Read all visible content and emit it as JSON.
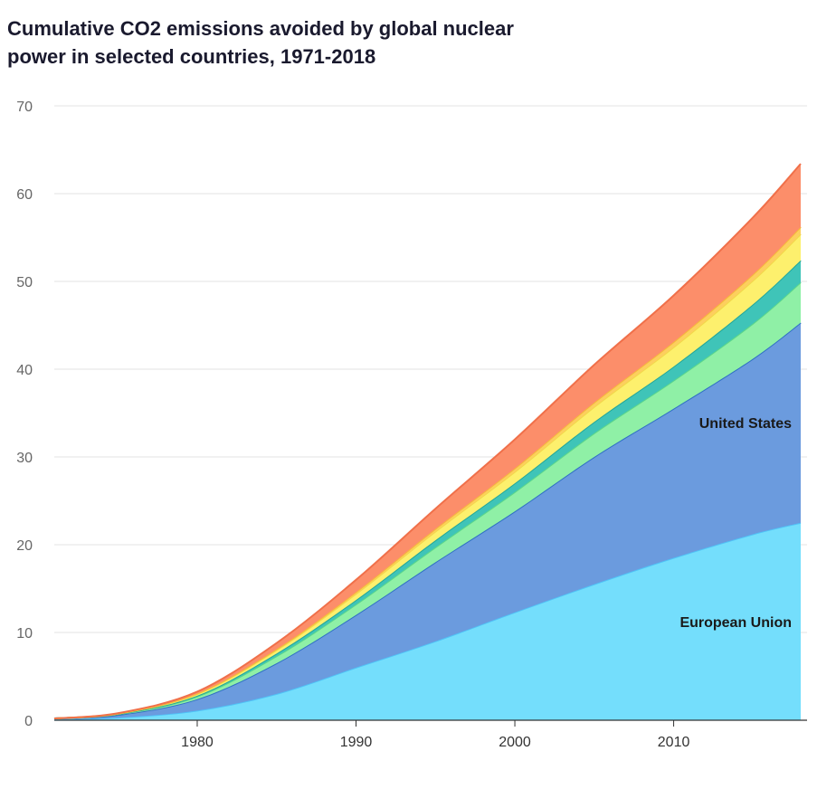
{
  "chart_data": {
    "type": "area",
    "stacked": true,
    "title": "Cumulative CO2 emissions avoided by global nuclear power in selected countries, 1971-2018",
    "xlabel": "",
    "ylabel": "",
    "xlim": [
      1971,
      2018
    ],
    "ylim": [
      0,
      70
    ],
    "yticks": [
      "0",
      "10",
      "20",
      "30",
      "40",
      "50",
      "60",
      "70"
    ],
    "xticks": [
      "1980",
      "1990",
      "2000",
      "2010"
    ],
    "grid": true,
    "x": [
      1971,
      1975,
      1980,
      1985,
      1990,
      1995,
      2000,
      2005,
      2010,
      2015,
      2018
    ],
    "series": [
      {
        "name": "European Union",
        "color": "#74defc",
        "line": "#4fc3f7",
        "label": "European Union",
        "values": [
          0.1,
          0.3,
          1.1,
          3.0,
          6.0,
          9.0,
          12.3,
          15.5,
          18.5,
          21.2,
          22.5
        ]
      },
      {
        "name": "United States",
        "color": "#6b9bde",
        "line": "#2f6fc4",
        "label": "United States",
        "values": [
          0.1,
          0.3,
          1.3,
          3.5,
          6.0,
          9.0,
          11.5,
          14.5,
          17.0,
          20.0,
          22.8
        ]
      },
      {
        "name": "",
        "color": "#8ff0a6",
        "line": "#5cd68a",
        "values": [
          0.0,
          0.1,
          0.3,
          0.8,
          1.2,
          1.7,
          2.2,
          2.7,
          3.2,
          4.0,
          4.6
        ]
      },
      {
        "name": "",
        "color": "#3fc4b8",
        "line": "#22a69a",
        "values": [
          0.0,
          0.0,
          0.1,
          0.3,
          0.5,
          0.8,
          1.0,
          1.3,
          1.6,
          2.2,
          2.5
        ]
      },
      {
        "name": "",
        "color": "#fdf06d",
        "line": "#f2d84a",
        "values": [
          0.0,
          0.05,
          0.2,
          0.4,
          0.7,
          1.0,
          1.3,
          1.7,
          2.2,
          2.7,
          3.0
        ]
      },
      {
        "name": "",
        "color": "#fdcf5e",
        "line": "#f5b93a",
        "values": [
          0.0,
          0.0,
          0.05,
          0.1,
          0.2,
          0.3,
          0.4,
          0.5,
          0.6,
          0.7,
          0.8
        ]
      },
      {
        "name": "",
        "color": "#fc8e6a",
        "line": "#f0704a",
        "values": [
          0.0,
          0.05,
          0.2,
          0.7,
          1.4,
          2.3,
          3.3,
          4.3,
          5.3,
          6.5,
          7.2
        ]
      }
    ]
  }
}
